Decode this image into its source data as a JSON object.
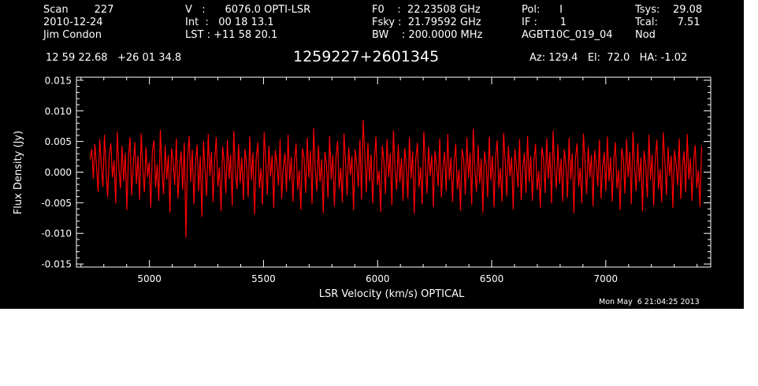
{
  "header": {
    "col1": [
      "Scan        227",
      "2010-12-24",
      "Jim Condon"
    ],
    "col2": [
      "V   :      6076.0 OPTI-LSR",
      "Int  :   00 18 13.1",
      "LST : +11 58 20.1"
    ],
    "col3": [
      "F0    :  22.23508 GHz",
      "Fsky :  21.79592 GHz",
      "BW    : 200.0000 MHz"
    ],
    "col4": [
      "Pol:      I",
      "IF :       1",
      "AGBT10C_019_04"
    ],
    "col5": [
      "Tsys:    29.08",
      "Tcal:      7.51",
      "Nod"
    ],
    "coords": "12 59 22.68   +26 01 34.8",
    "source": "1259227+2601345",
    "pointing": "Az: 129.4   El:  72.0   HA: -1.02",
    "timestamp": "Mon May  6 21:04:25 2013"
  },
  "colors": {
    "background": "#000000",
    "trace": "#ff0000",
    "axes": "#ffffff"
  },
  "chart_data": {
    "type": "line",
    "title": "",
    "xlabel": "LSR Velocity (km/s) OPTICAL",
    "ylabel": "Flux Density (Jy)",
    "xlim": [
      4680,
      7460
    ],
    "ylim": [
      -0.0155,
      0.0155
    ],
    "xticks": [
      5000,
      5500,
      6000,
      6500,
      7000
    ],
    "xtick_labels": [
      "5000",
      "5500",
      "6000",
      "6500",
      "7000"
    ],
    "yticks": [
      -0.015,
      -0.01,
      -0.005,
      0.0,
      0.005,
      0.01,
      0.015
    ],
    "ytick_labels": [
      "-0.015",
      "-0.010",
      "-0.005",
      "0.000",
      "0.005",
      "0.010",
      "0.015"
    ],
    "series": [
      {
        "x_start": 4740,
        "x_end": 7420,
        "values": [
          0.0021,
          0.0038,
          -0.0011,
          0.0046,
          0.0009,
          -0.0032,
          0.0054,
          0.0012,
          -0.0024,
          0.0061,
          0.0003,
          -0.0041,
          0.0029,
          0.0047,
          -0.0009,
          0.0019,
          -0.0051,
          0.0066,
          0.0008,
          -0.0027,
          0.0043,
          -0.0015,
          0.0031,
          -0.0062,
          0.0024,
          0.0057,
          -0.0038,
          0.0011,
          0.0049,
          -0.0019,
          0.0027,
          -0.0045,
          0.0063,
          0.0005,
          -0.0033,
          0.0041,
          -0.0008,
          0.0016,
          -0.0058,
          0.0035,
          0.0052,
          -0.0025,
          0.0013,
          -0.0047,
          0.0069,
          0.0002,
          -0.0036,
          0.0044,
          -0.0012,
          0.0028,
          -0.0066,
          0.0039,
          0.0017,
          -0.0021,
          0.0055,
          -0.0043,
          0.0007,
          0.0034,
          -0.0029,
          0.0048,
          -0.0107,
          0.0022,
          0.0059,
          -0.0016,
          0.0037,
          -0.0052,
          0.0014,
          0.0045,
          -0.0031,
          0.0026,
          -0.0073,
          0.0051,
          0.0004,
          -0.0039,
          0.0062,
          -0.0006,
          0.0033,
          -0.0049,
          0.0019,
          0.0057,
          -0.0023,
          0.0008,
          -0.0064,
          0.0042,
          0.0015,
          -0.0035,
          0.0053,
          -0.0011,
          0.0029,
          -0.0055,
          0.0067,
          0.0001,
          -0.0028,
          0.0046,
          -0.0018,
          0.0024,
          -0.0046,
          0.0038,
          0.0011,
          -0.0041,
          0.0058,
          -0.0013,
          0.0032,
          -0.0069,
          0.0021,
          0.0049,
          -0.0026,
          0.0006,
          -0.0053,
          0.0065,
          0.0018,
          -0.0037,
          0.0043,
          -0.0007,
          0.0027,
          -0.0059,
          0.0036,
          0.0013,
          -0.0022,
          0.0054,
          -0.0044,
          0.0009,
          0.0031,
          -0.0032,
          0.0061,
          -0.0014,
          0.0025,
          -0.0048,
          0.0017,
          0.0047,
          -0.0029,
          0.0003,
          -0.0061,
          0.0039,
          0.0023,
          -0.0034,
          0.0056,
          -0.0009,
          0.0035,
          -0.0052,
          0.0072,
          0.0004,
          -0.0031,
          0.0044,
          -0.0016,
          0.0021,
          -0.0067,
          0.0033,
          0.0014,
          -0.0042,
          0.0059,
          -0.0012,
          0.0028,
          -0.0056,
          0.0024,
          0.0051,
          -0.0027,
          0.0007,
          -0.0049,
          0.0063,
          0.0016,
          -0.0038,
          0.0041,
          -0.0005,
          0.0026,
          -0.0062,
          0.0037,
          0.0012,
          -0.0024,
          0.0053,
          -0.0045,
          0.0085,
          0.0032,
          -0.0033,
          0.0048,
          -0.0015,
          0.0029,
          -0.0051,
          0.0018,
          0.0058,
          -0.0021,
          0.0002,
          -0.0065,
          0.0043,
          0.0019,
          -0.0036,
          0.0054,
          -0.0008,
          0.0031,
          -0.0054,
          0.0068,
          0.0006,
          -0.0029,
          0.0045,
          -0.0017,
          0.0023,
          -0.0047,
          0.0039,
          0.0012,
          -0.0043,
          0.0057,
          -0.0011,
          0.0034,
          -0.0068,
          0.0022,
          0.0048,
          -0.0025,
          0.0008,
          -0.0052,
          0.0066,
          0.0015,
          -0.0035,
          0.0042,
          -0.0006,
          0.0028,
          -0.0057,
          0.0035,
          0.0011,
          -0.0023,
          0.0055,
          -0.0041,
          0.0009,
          0.0033,
          -0.0031,
          0.0062,
          -0.0013,
          0.0024,
          -0.0049,
          0.0016,
          0.0046,
          -0.0028,
          0.0004,
          -0.0063,
          0.0038,
          0.0021,
          -0.0037,
          0.0057,
          -0.0009,
          0.0032,
          -0.0053,
          0.0071,
          0.0003,
          -0.0032,
          0.0044,
          -0.0018,
          0.0022,
          -0.0066,
          0.0034,
          0.0013,
          -0.0041,
          0.0058,
          -0.0014,
          0.0027,
          -0.0057,
          0.0025,
          0.0052,
          -0.0026,
          0.0006,
          -0.0048,
          0.0064,
          0.0017,
          -0.0039,
          0.0043,
          -0.0007,
          0.0025,
          -0.0061,
          0.0038,
          0.0011,
          -0.0025,
          0.0054,
          -0.0046,
          0.0008,
          0.0031,
          -0.0034,
          0.0059,
          -0.0016,
          0.0026,
          -0.0047,
          0.0019,
          0.0046,
          -0.0029,
          0.0002,
          -0.0058,
          0.0041,
          0.0022,
          -0.0034,
          0.0055,
          -0.0011,
          0.0033,
          -0.0051,
          0.0067,
          0.0005,
          -0.0027,
          0.0045,
          -0.0019,
          0.0022,
          -0.0048,
          0.0037,
          0.0013,
          -0.0042,
          0.0056,
          -0.0012,
          0.0031,
          -0.0067,
          0.0023,
          0.0047,
          -0.0024,
          0.0007,
          -0.0051,
          0.0063,
          0.0016,
          -0.0036,
          0.0042,
          -0.0008,
          0.0028,
          -0.0056,
          0.0036,
          0.0012,
          -0.0023,
          0.0053,
          -0.0043,
          0.0009,
          0.0032,
          -0.0031,
          0.0058,
          -0.0015,
          0.0025,
          -0.0048,
          0.0018,
          0.0049,
          -0.0027,
          0.0004,
          -0.0062,
          0.0039,
          0.0021,
          -0.0035,
          0.0054,
          -0.0008,
          0.0033,
          -0.0052,
          0.0066,
          0.0007,
          -0.0031,
          0.0047,
          -0.0016,
          0.0024,
          -0.0064,
          0.0035,
          0.0011,
          -0.0042,
          0.0061,
          -0.0013,
          0.0029,
          -0.0055,
          0.0022,
          0.0053,
          -0.0028,
          0.0005,
          -0.0049,
          0.0065,
          0.0018,
          -0.0038,
          0.0041,
          -0.0006,
          0.0027,
          -0.0059,
          0.0036,
          0.0014,
          -0.0022,
          0.0055,
          -0.0044,
          0.0008,
          0.0034,
          -0.0033,
          0.0062,
          -0.0012,
          0.0023,
          -0.0047,
          0.0017,
          0.0044,
          -0.0026,
          0.0003,
          -0.0057,
          0.0042
        ]
      }
    ]
  }
}
